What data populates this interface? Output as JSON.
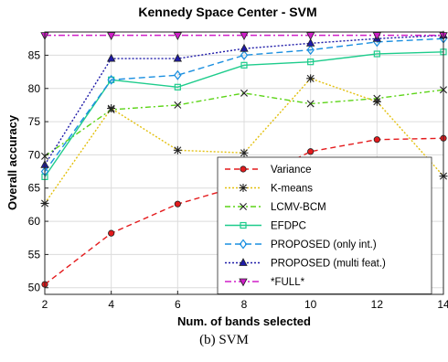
{
  "caption": "(b) SVM",
  "chart_data": {
    "type": "line",
    "title": "Kennedy Space Center - SVM",
    "xlabel": "Num. of bands selected",
    "ylabel": "Overall accuracy",
    "x": [
      2,
      4,
      6,
      8,
      10,
      12,
      14
    ],
    "xlim": [
      2,
      14
    ],
    "ylim": [
      49,
      88.5
    ],
    "xticks": [
      "2",
      "4",
      "6",
      "8",
      "10",
      "12",
      "14"
    ],
    "yticks": [
      "50",
      "55",
      "60",
      "65",
      "70",
      "75",
      "80",
      "85"
    ],
    "grid": true,
    "legend_position": "bottom-right",
    "series": [
      {
        "name": "Variance",
        "color": "#e41a1c",
        "dash": "6,4",
        "marker": "circle",
        "values": [
          50.5,
          58.2,
          62.6,
          65.5,
          70.5,
          72.3,
          72.5
        ]
      },
      {
        "name": "K-means",
        "color": "#e3c00e",
        "dash": "2,2",
        "marker": "star",
        "values": [
          62.7,
          77.0,
          70.7,
          70.3,
          81.5,
          78.0,
          66.8
        ]
      },
      {
        "name": "LCMV-BCM",
        "color": "#5cd417",
        "dash": "6,3,2,3",
        "marker": "x",
        "values": [
          69.8,
          76.8,
          77.5,
          79.3,
          77.7,
          78.5,
          79.8
        ]
      },
      {
        "name": "EFDPC",
        "color": "#1ecc8c",
        "dash": "",
        "marker": "square",
        "values": [
          66.7,
          81.3,
          80.2,
          83.5,
          84.0,
          85.2,
          85.5
        ]
      },
      {
        "name": "PROPOSED (only int.)",
        "color": "#1a8fe0",
        "dash": "7,4",
        "marker": "diamond",
        "values": [
          67.5,
          81.3,
          82.0,
          85.0,
          85.8,
          87.0,
          87.5
        ]
      },
      {
        "name": "PROPOSED (multi feat.)",
        "color": "#1e1aa8",
        "dash": "2,2",
        "marker": "triangle-up",
        "values": [
          68.5,
          84.5,
          84.5,
          86.0,
          86.8,
          87.5,
          88.0
        ]
      },
      {
        "name": "*FULL*",
        "color": "#d01ec8",
        "dash": "7,3,2,3",
        "marker": "triangle-down",
        "values": [
          88.0,
          88.0,
          88.0,
          88.0,
          88.0,
          88.0,
          88.0
        ]
      }
    ]
  }
}
